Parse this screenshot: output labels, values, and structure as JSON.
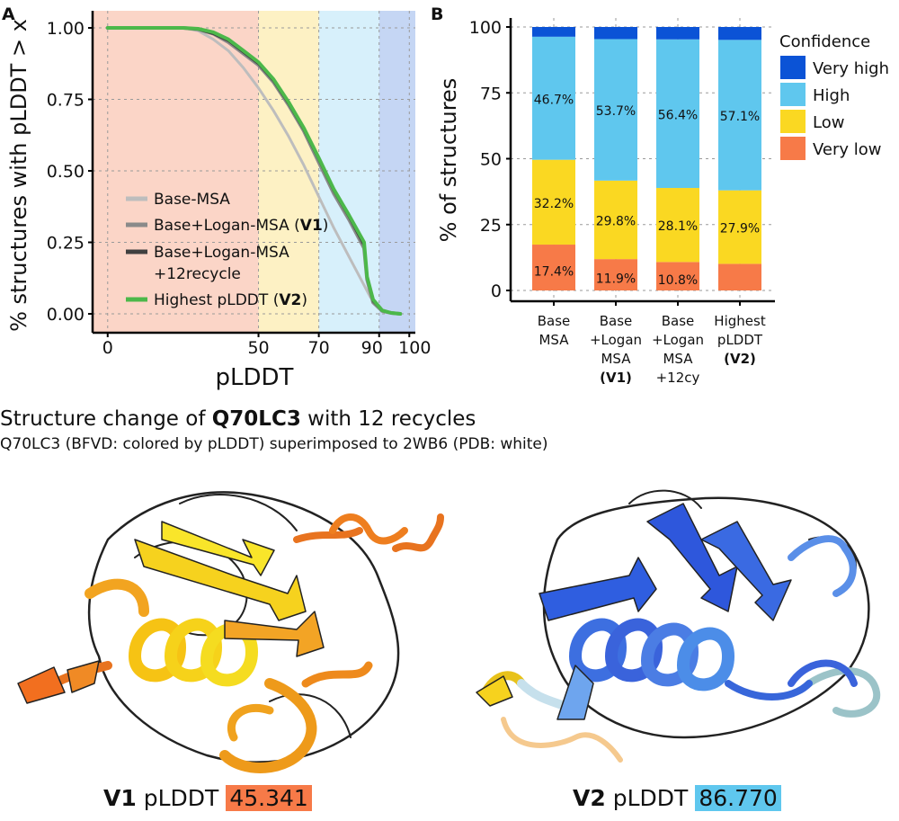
{
  "colors": {
    "very_high": "#0B53D6",
    "high": "#5FC7EE",
    "low": "#FAD822",
    "very_low": "#F77A48",
    "base_msa": "#BDBDBD",
    "base_logan": "#8A8A8A",
    "base_logan_12": "#404040",
    "highest_plddt": "#4CB84A",
    "band_very_low": "#FBD5C7",
    "band_low": "#FDF1C4",
    "band_high": "#D7F0FB",
    "band_very_high": "#C5D6F4"
  },
  "panel_a_label": "A",
  "panel_b_label": "B",
  "chart_data": [
    {
      "type": "line",
      "ylabel": "% structures with pLDDT > x",
      "xlabel": "pLDDT",
      "xlim": [
        -5,
        102
      ],
      "ylim": [
        0,
        1
      ],
      "xticks": [
        0,
        50,
        70,
        90,
        100
      ],
      "xtick_labels": [
        "0",
        "50",
        "70",
        "90",
        "100"
      ],
      "yticks": [
        0,
        0.25,
        0.5,
        0.75,
        1.0
      ],
      "ytick_labels": [
        "0.00",
        "0.25",
        "0.50",
        "0.75",
        "1.00"
      ],
      "grid": true,
      "bands": [
        {
          "from": -5,
          "to": 50,
          "class": "very_low"
        },
        {
          "from": 50,
          "to": 70,
          "class": "low"
        },
        {
          "from": 70,
          "to": 90,
          "class": "high"
        },
        {
          "from": 90,
          "to": 102,
          "class": "very_high"
        }
      ],
      "series": [
        {
          "name": "Base-MSA",
          "color_key": "base_msa",
          "width": 3,
          "x": [
            0,
            25,
            30,
            35,
            40,
            45,
            50,
            55,
            60,
            65,
            70,
            75,
            80,
            85,
            87,
            89,
            91,
            94,
            97
          ],
          "y": [
            1.0,
            1.0,
            0.99,
            0.96,
            0.92,
            0.86,
            0.79,
            0.71,
            0.62,
            0.52,
            0.41,
            0.3,
            0.2,
            0.1,
            0.06,
            0.03,
            0.01,
            0.003,
            0
          ]
        },
        {
          "name": "Base+Logan-MSA (V1)",
          "color_key": "base_logan",
          "width": 4,
          "x": [
            0,
            25,
            30,
            35,
            40,
            45,
            50,
            55,
            60,
            65,
            70,
            75,
            80,
            85,
            86,
            88,
            91,
            94,
            97
          ],
          "y": [
            1.0,
            1.0,
            0.995,
            0.98,
            0.95,
            0.91,
            0.87,
            0.81,
            0.73,
            0.64,
            0.53,
            0.42,
            0.33,
            0.23,
            0.12,
            0.04,
            0.01,
            0.003,
            0
          ]
        },
        {
          "name": "Base+Logan-MSA +12recycle",
          "color_key": "base_logan_12",
          "width": 3,
          "x": [
            0,
            25,
            30,
            35,
            40,
            45,
            50,
            55,
            60,
            65,
            70,
            75,
            80,
            85,
            86,
            88,
            91,
            94,
            97
          ],
          "y": [
            1.0,
            1.0,
            0.995,
            0.98,
            0.955,
            0.915,
            0.875,
            0.815,
            0.735,
            0.645,
            0.54,
            0.43,
            0.34,
            0.24,
            0.13,
            0.045,
            0.012,
            0.003,
            0
          ]
        },
        {
          "name": "Highest pLDDT (V2)",
          "color_key": "highest_plddt",
          "width": 4,
          "x": [
            0,
            25,
            30,
            35,
            40,
            45,
            50,
            55,
            60,
            65,
            70,
            75,
            80,
            85,
            86,
            88,
            91,
            94,
            97
          ],
          "y": [
            1.0,
            1.0,
            0.997,
            0.985,
            0.96,
            0.92,
            0.88,
            0.82,
            0.74,
            0.65,
            0.545,
            0.435,
            0.345,
            0.25,
            0.13,
            0.05,
            0.012,
            0.003,
            0
          ]
        }
      ],
      "legend": {
        "placement": "bottom-left",
        "entries": [
          {
            "plain": "Base-MSA",
            "bold": "",
            "suffix": "",
            "color_key": "base_msa"
          },
          {
            "plain": "Base+Logan-MSA (",
            "bold": "V1",
            "suffix": ")",
            "color_key": "base_logan"
          },
          {
            "plain": "Base+Logan-MSA",
            "plain2": "+12recycle",
            "bold": "",
            "suffix": "",
            "color_key": "base_logan_12"
          },
          {
            "plain": "Highest pLDDT (",
            "bold": "V2",
            "suffix": ")",
            "color_key": "highest_plddt"
          }
        ]
      }
    },
    {
      "type": "bar",
      "stacked": true,
      "ylabel": "% of structures",
      "ylim": [
        0,
        100
      ],
      "yticks": [
        0,
        25,
        50,
        75,
        100
      ],
      "ytick_labels": [
        "0",
        "25",
        "50",
        "75",
        "100"
      ],
      "grid": true,
      "categories": [
        {
          "lines": [
            "Base",
            "MSA"
          ],
          "bold_line": -1
        },
        {
          "lines": [
            "Base",
            "+Logan",
            "MSA",
            "(V1)"
          ],
          "bold_line": 3
        },
        {
          "lines": [
            "Base",
            "+Logan",
            "MSA",
            "+12cy"
          ],
          "bold_line": -1
        },
        {
          "lines": [
            "Highest",
            "pLDDT",
            "(V2)"
          ],
          "bold_line": 2
        }
      ],
      "series": [
        {
          "name": "Very low",
          "color_key": "very_low",
          "values": [
            17.4,
            11.9,
            10.8,
            10.1
          ],
          "labels": [
            "17.4%",
            "11.9%",
            "10.8%",
            ""
          ]
        },
        {
          "name": "Low",
          "color_key": "low",
          "values": [
            32.2,
            29.8,
            28.1,
            27.9
          ],
          "labels": [
            "32.2%",
            "29.8%",
            "28.1%",
            "27.9%"
          ]
        },
        {
          "name": "High",
          "color_key": "high",
          "values": [
            46.7,
            53.7,
            56.4,
            57.1
          ],
          "labels": [
            "46.7%",
            "53.7%",
            "56.4%",
            "57.1%"
          ]
        },
        {
          "name": "Very high",
          "color_key": "very_high",
          "values": [
            3.7,
            4.6,
            4.7,
            4.9
          ],
          "labels": [
            "",
            "",
            "",
            ""
          ]
        }
      ],
      "legend": {
        "title": "Confidence",
        "placement": "right",
        "entries": [
          {
            "name": "Very high",
            "color_key": "very_high"
          },
          {
            "name": "High",
            "color_key": "high"
          },
          {
            "name": "Low",
            "color_key": "low"
          },
          {
            "name": "Very low",
            "color_key": "very_low"
          }
        ]
      }
    }
  ],
  "heading": {
    "prefix": "Structure change of ",
    "bold": "Q70LC3",
    "suffix": " with 12 recycles"
  },
  "subheading": "Q70LC3 (BFVD: colored by pLDDT) superimposed to 2WB6 (PDB: white)",
  "captions": [
    {
      "tag": "V1",
      "label": "pLDDT",
      "value": "45.341",
      "color_key": "very_low"
    },
    {
      "tag": "V2",
      "label": "pLDDT",
      "value": "86.770",
      "color_key": "high"
    }
  ]
}
